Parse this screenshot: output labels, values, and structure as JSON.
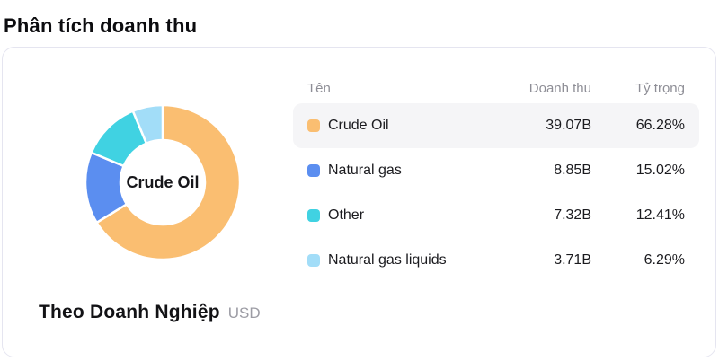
{
  "page": {
    "title": "Phân tích doanh thu"
  },
  "chart": {
    "center_label": "Crude Oil",
    "title": "Theo Doanh Nghiệp",
    "currency": "USD"
  },
  "table": {
    "headers": {
      "name": "Tên",
      "revenue": "Doanh thu",
      "share": "Tỷ trọng"
    },
    "rows": [
      {
        "label": "Crude Oil",
        "revenue": "39.07B",
        "share": "66.28%",
        "color": "#FABE71",
        "highlighted": true
      },
      {
        "label": "Natural gas",
        "revenue": "8.85B",
        "share": "15.02%",
        "color": "#5B8EF0",
        "highlighted": false
      },
      {
        "label": "Other",
        "revenue": "7.32B",
        "share": "12.41%",
        "color": "#40D2E2",
        "highlighted": false
      },
      {
        "label": "Natural gas liquids",
        "revenue": "3.71B",
        "share": "6.29%",
        "color": "#A2DDF8",
        "highlighted": false
      }
    ]
  },
  "chart_data": {
    "type": "pie",
    "donut": true,
    "title": "Theo Doanh Nghiệp",
    "currency": "USD",
    "center_label": "Crude Oil",
    "categories": [
      "Crude Oil",
      "Natural gas",
      "Other",
      "Natural gas liquids"
    ],
    "values": [
      39.07,
      8.85,
      7.32,
      3.71
    ],
    "unit": "B",
    "percentages": [
      66.28,
      15.02,
      12.41,
      6.29
    ],
    "colors": [
      "#FABE71",
      "#5B8EF0",
      "#40D2E2",
      "#A2DDF8"
    ],
    "start_angle_deg": 0,
    "direction": "clockwise",
    "inner_radius_ratio": 0.55
  },
  "theme": {
    "title_text": "#0c0c0f",
    "card_border": "#e5e5f0",
    "row_highlight": "#f5f5f7",
    "header_text": "#8e8e96",
    "muted_text": "#9c9ca4"
  }
}
